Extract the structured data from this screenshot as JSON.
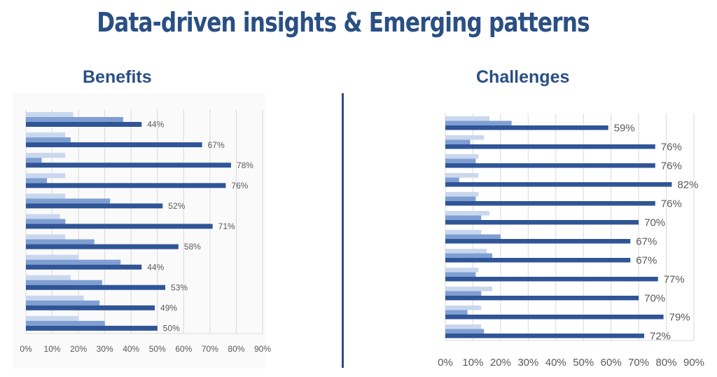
{
  "title": "Data-driven insights & Emerging patterns",
  "colors": {
    "title": "#2a4f83",
    "dark_series": "#2f5597",
    "medium_series": "#7f9fd3",
    "light_series": "#c9d7ee",
    "grid": "#d9d9d9"
  },
  "chart_data": [
    {
      "type": "bar",
      "orientation": "horizontal",
      "title": "Benefits",
      "xlim": [
        0,
        90
      ],
      "x_ticks": [
        "0%",
        "10%",
        "20%",
        "30%",
        "40%",
        "50%",
        "60%",
        "70%",
        "80%",
        "90%"
      ],
      "grid": "vertical",
      "legend": "none",
      "series": [
        {
          "color": "#c9d7ee",
          "values": [
            18,
            15,
            15,
            15,
            15,
            13,
            15,
            20,
            17,
            22,
            20
          ]
        },
        {
          "color": "#7f9fd3",
          "values": [
            37,
            17,
            6,
            8,
            32,
            15,
            26,
            36,
            29,
            28,
            30
          ]
        },
        {
          "color": "#2f5597",
          "values": [
            44,
            67,
            78,
            76,
            52,
            71,
            58,
            44,
            53,
            49,
            50
          ],
          "data_labels": [
            "44%",
            "67%",
            "78%",
            "76%",
            "52%",
            "71%",
            "58%",
            "44%",
            "53%",
            "49%",
            "50%"
          ]
        }
      ]
    },
    {
      "type": "bar",
      "orientation": "horizontal",
      "title": "Challenges",
      "xlim": [
        0,
        90
      ],
      "x_ticks": [
        "0%",
        "10%",
        "20%",
        "30%",
        "40%",
        "50%",
        "60%",
        "70%",
        "80%",
        "90%"
      ],
      "grid": "vertical",
      "legend": "none",
      "series": [
        {
          "color": "#c9d7ee",
          "values": [
            16,
            14,
            12,
            12,
            12,
            16,
            13,
            15,
            12,
            17,
            13,
            13
          ]
        },
        {
          "color": "#7f9fd3",
          "values": [
            24,
            9,
            11,
            5,
            11,
            13,
            20,
            17,
            11,
            13,
            8,
            14
          ]
        },
        {
          "color": "#2f5597",
          "values": [
            59,
            76,
            76,
            82,
            76,
            70,
            67,
            67,
            77,
            70,
            79,
            72
          ],
          "data_labels": [
            "59%",
            "76%",
            "76%",
            "82%",
            "76%",
            "70%",
            "67%",
            "67%",
            "77%",
            "70%",
            "79%",
            "72%"
          ]
        }
      ]
    }
  ]
}
